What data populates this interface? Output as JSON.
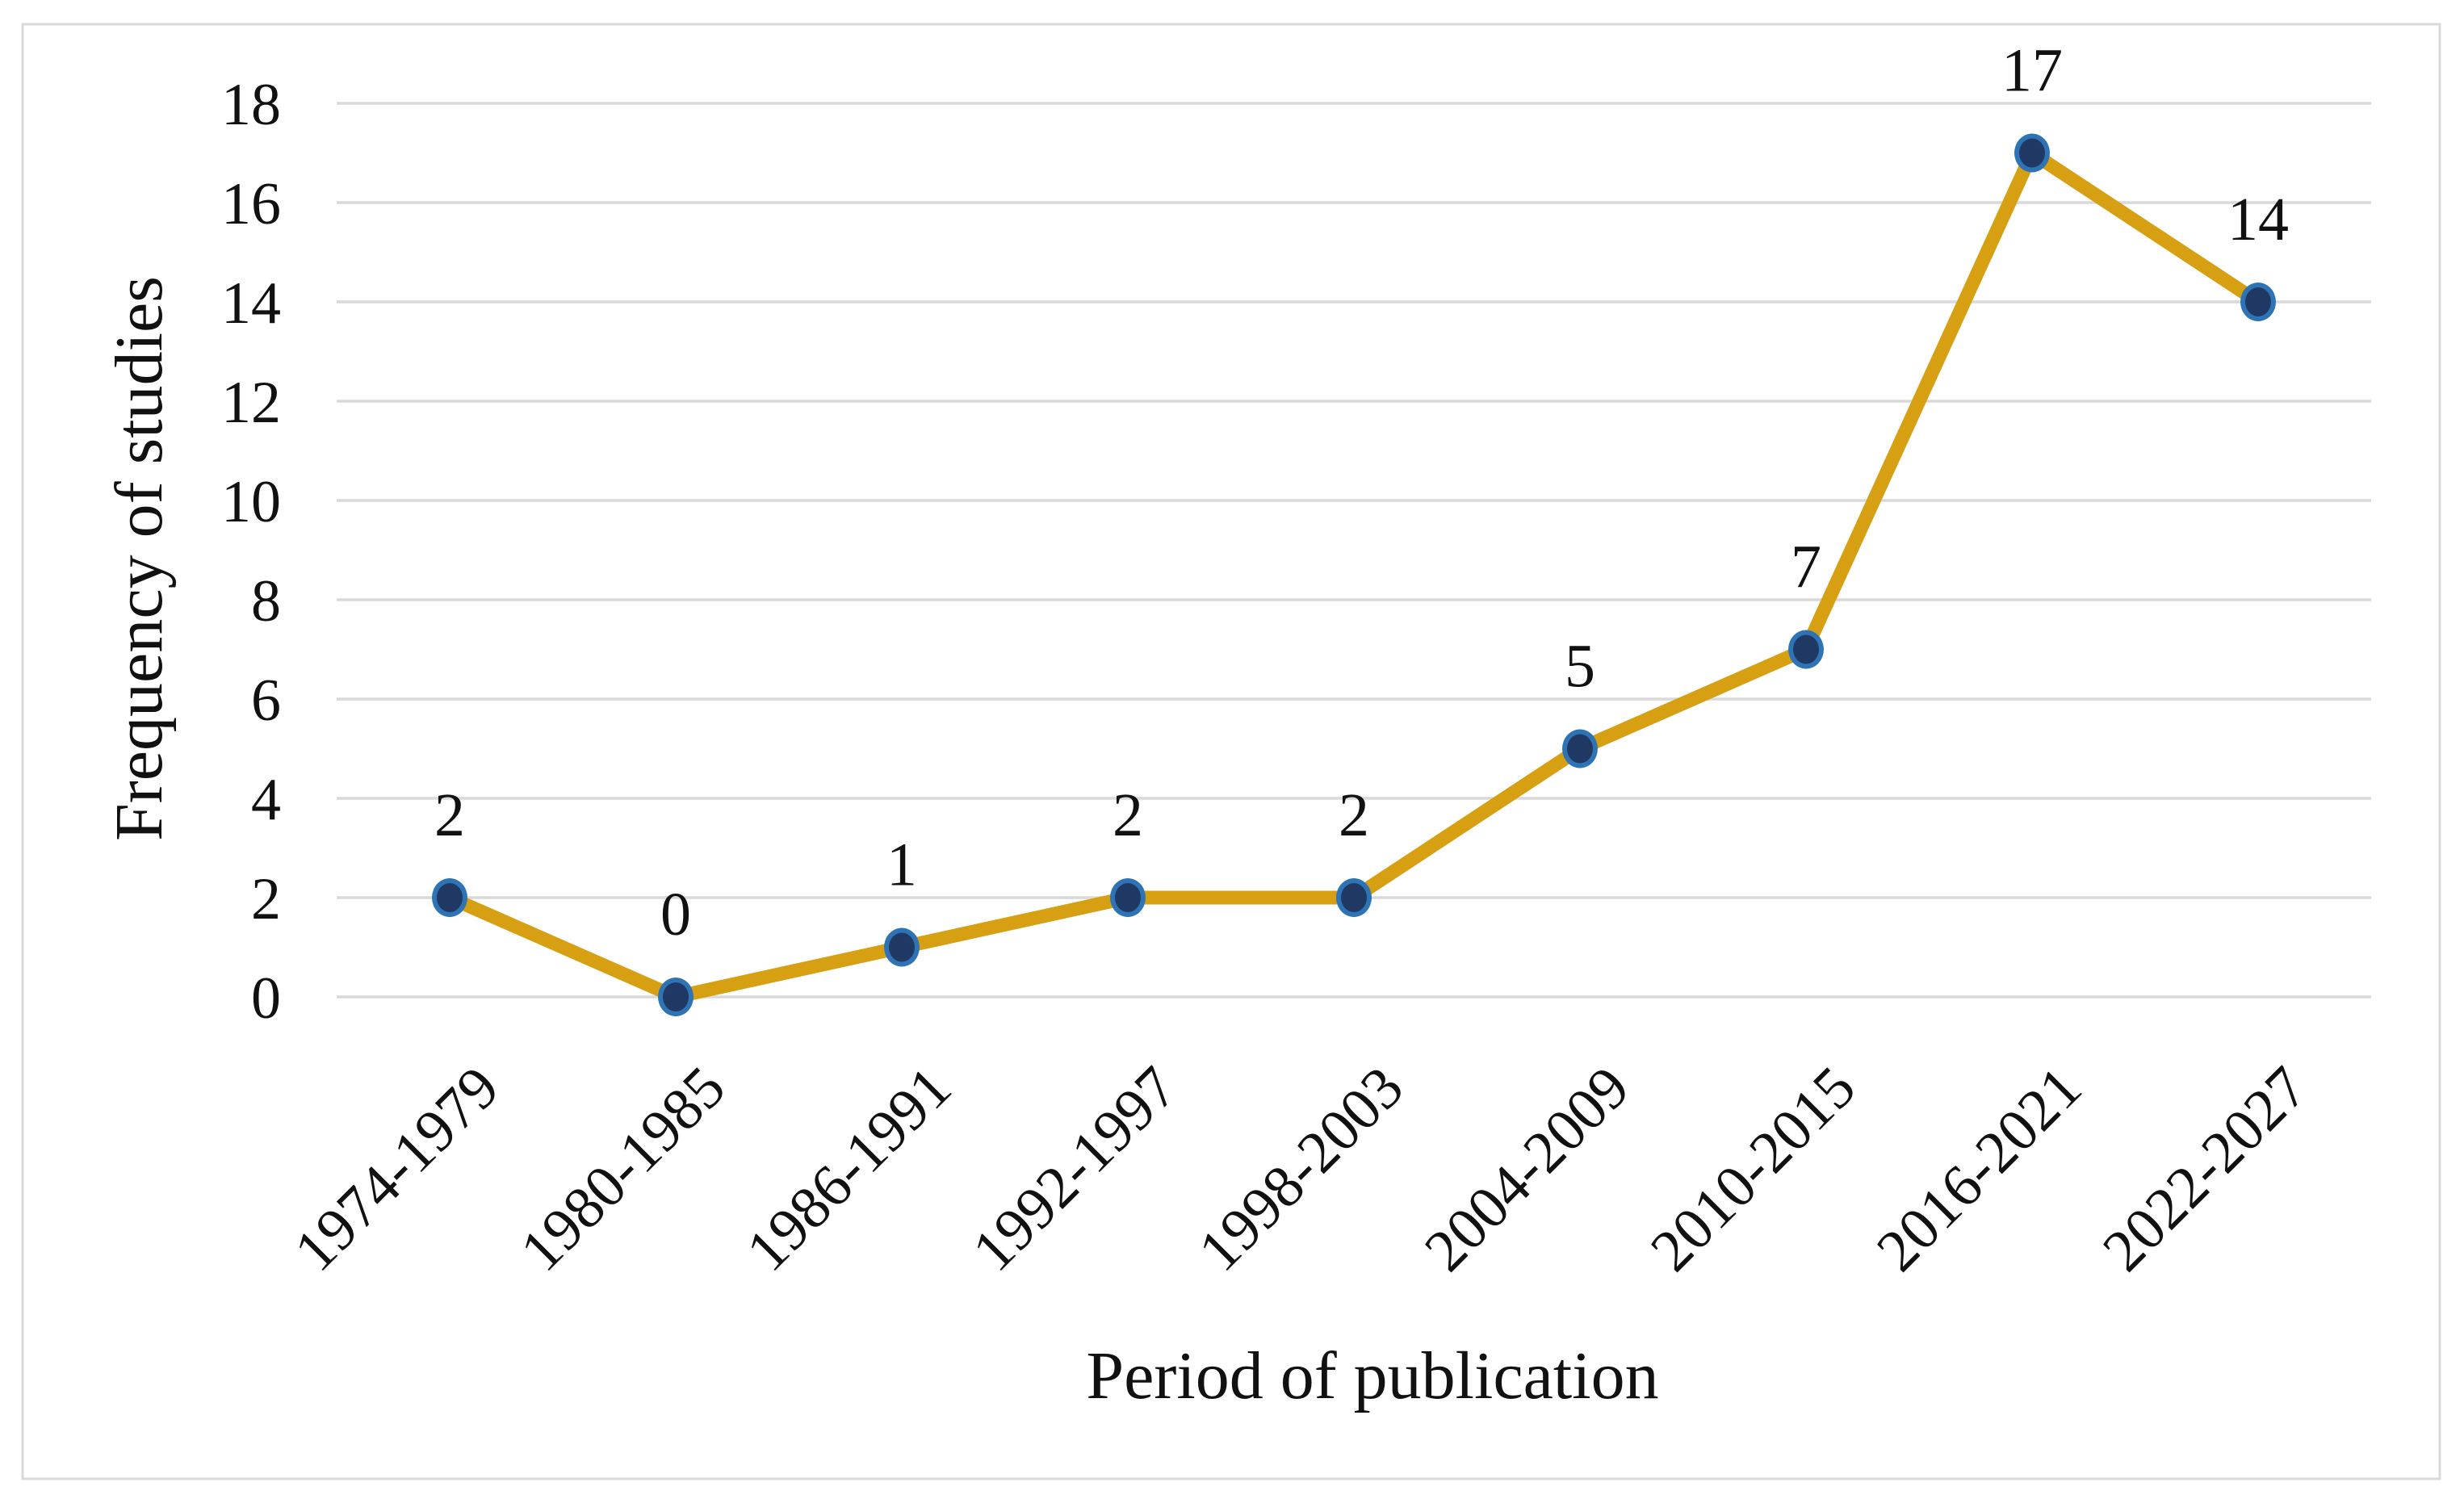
{
  "chart_data": {
    "type": "line",
    "title": "",
    "xlabel": "Period of publication",
    "ylabel": "Frequency of studies",
    "categories": [
      "1974-1979",
      "1980-1985",
      "1986-1991",
      "1992-1997",
      "1998-2003",
      "2004-2009",
      "2010-2015",
      "2016-2021",
      "2022-2027"
    ],
    "values": [
      2,
      0,
      1,
      2,
      2,
      5,
      7,
      17,
      14
    ],
    "yticks": [
      0,
      2,
      4,
      6,
      8,
      10,
      12,
      14,
      16,
      18
    ],
    "ylim": [
      0,
      18
    ],
    "grid": "horizontal",
    "legend": "none",
    "x_tick_rotation_deg": 45,
    "colors": {
      "line": "#D7A013",
      "marker_fill": "#1F3864",
      "marker_ring": "#2E74B5",
      "gridline": "#D9D9D9",
      "frame_border": "#D9D9D9",
      "text": "#111111",
      "background": "#FFFFFF"
    }
  }
}
